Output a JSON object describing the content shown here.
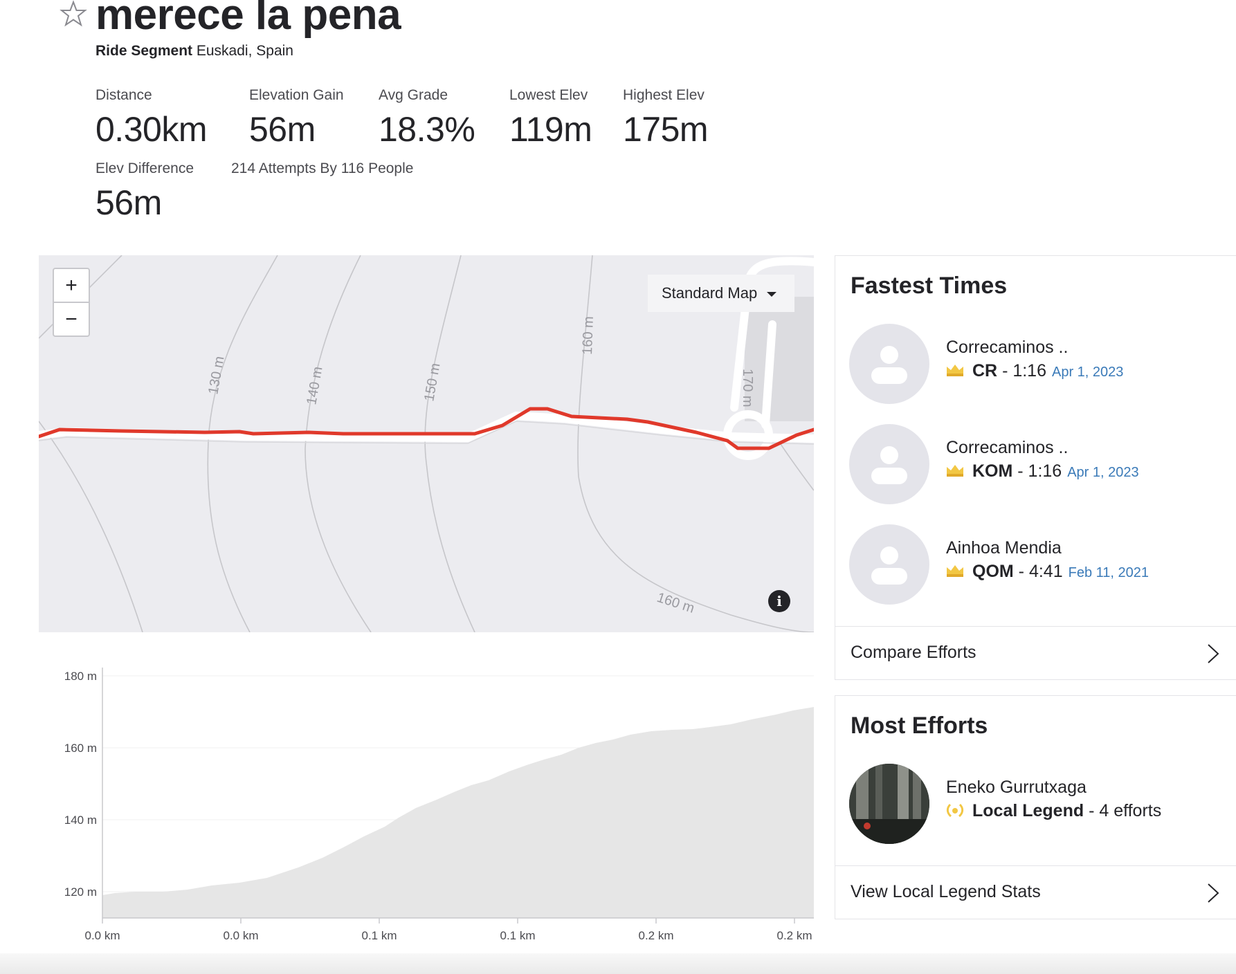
{
  "segment": {
    "title": "merece la pena",
    "type_label": "Ride Segment",
    "location": "Euskadi, Spain",
    "star_icon": "star-outline-icon"
  },
  "stats": {
    "distance": {
      "label": "Distance",
      "value": "0.30km"
    },
    "elevation_gain": {
      "label": "Elevation Gain",
      "value": "56m"
    },
    "avg_grade": {
      "label": "Avg Grade",
      "value": "18.3%"
    },
    "lowest_elev": {
      "label": "Lowest Elev",
      "value": "119m"
    },
    "highest_elev": {
      "label": "Highest Elev",
      "value": "175m"
    },
    "elev_difference": {
      "label": "Elev Difference",
      "value": "56m"
    },
    "attempts": "214 Attempts By 116 People"
  },
  "map": {
    "zoom_in": "+",
    "zoom_out": "−",
    "map_type": "Standard Map",
    "info": "i",
    "contour_labels": [
      "130 m",
      "140 m",
      "150 m",
      "160 m",
      "170 m",
      "160 m"
    ],
    "route_color": "#e0392b"
  },
  "elevation_profile": {
    "y_ticks": [
      "180 m",
      "160 m",
      "140 m",
      "120 m"
    ],
    "x_ticks": [
      "0.0 km",
      "0.0 km",
      "0.1 km",
      "0.1 km",
      "0.2 km",
      "0.2 km"
    ],
    "fill_color": "#e6e6e6"
  },
  "fastest_times": {
    "heading": "Fastest Times",
    "entries": [
      {
        "name": "Correcaminos ..",
        "rank": "CR",
        "time": "- 1:16",
        "date": "Apr 1, 2023"
      },
      {
        "name": "Correcaminos ..",
        "rank": "KOM",
        "time": "- 1:16",
        "date": "Apr 1, 2023"
      },
      {
        "name": "Ainhoa Mendia",
        "rank": "QOM",
        "time": "- 4:41",
        "date": "Feb 11, 2021"
      }
    ],
    "compare_link": "Compare Efforts"
  },
  "most_efforts": {
    "heading": "Most Efforts",
    "name": "Eneko Gurrutxaga",
    "title": "Local Legend",
    "efforts": "- 4 efforts",
    "stats_link": "View Local Legend Stats"
  },
  "colors": {
    "crown": "#f2c744",
    "link_date": "#3a7ab8",
    "legend": "#f2c744"
  }
}
